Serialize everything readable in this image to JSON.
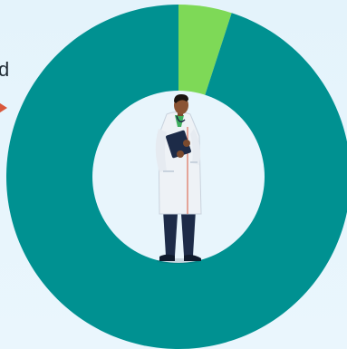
{
  "chart_data": {
    "type": "pie",
    "subtype": "donut",
    "categories": [
      "",
      ""
    ],
    "values": [
      5,
      95
    ],
    "colors": [
      "#7ed957",
      "#009191"
    ],
    "title": "",
    "legend": "left"
  },
  "legend": {
    "visible_fragment": "d"
  },
  "colors": {
    "background": "#e6f4fc",
    "hole": "#e8f5fc",
    "pointer": "#d9573b"
  },
  "center_figure": {
    "icon": "doctor-illustration-icon"
  }
}
